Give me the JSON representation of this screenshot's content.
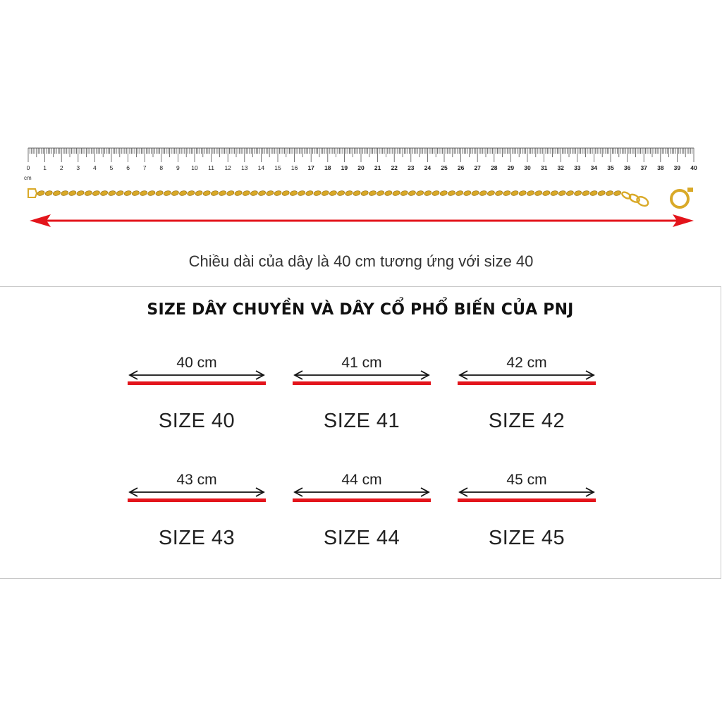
{
  "ruler": {
    "unit_label": "cm",
    "min": 0,
    "max": 40,
    "labels": [
      "0",
      "1",
      "2",
      "3",
      "4",
      "5",
      "6",
      "7",
      "8",
      "9",
      "10",
      "11",
      "12",
      "13",
      "14",
      "15",
      "16",
      "17",
      "18",
      "19",
      "20",
      "21",
      "22",
      "23",
      "24",
      "25",
      "26",
      "27",
      "28",
      "29",
      "30",
      "31",
      "32",
      "33",
      "34",
      "35",
      "36",
      "37",
      "38",
      "39",
      "40"
    ]
  },
  "colors": {
    "arrow_red": "#e3141b",
    "chain_gold": "#d9a928",
    "bar_red": "#e3141b"
  },
  "caption": "Chiều dài của dây là 40 cm tương ứng với size 40",
  "panel": {
    "title": "SIZE DÂY CHUYỀN VÀ DÂY CỔ PHỔ BIẾN CỦA PNJ",
    "sizes": [
      {
        "length": "40 cm",
        "label": "SIZE 40"
      },
      {
        "length": "41 cm",
        "label": "SIZE 41"
      },
      {
        "length": "42 cm",
        "label": "SIZE 42"
      },
      {
        "length": "43 cm",
        "label": "SIZE 43"
      },
      {
        "length": "44 cm",
        "label": "SIZE 44"
      },
      {
        "length": "45 cm",
        "label": "SIZE 45"
      }
    ]
  }
}
